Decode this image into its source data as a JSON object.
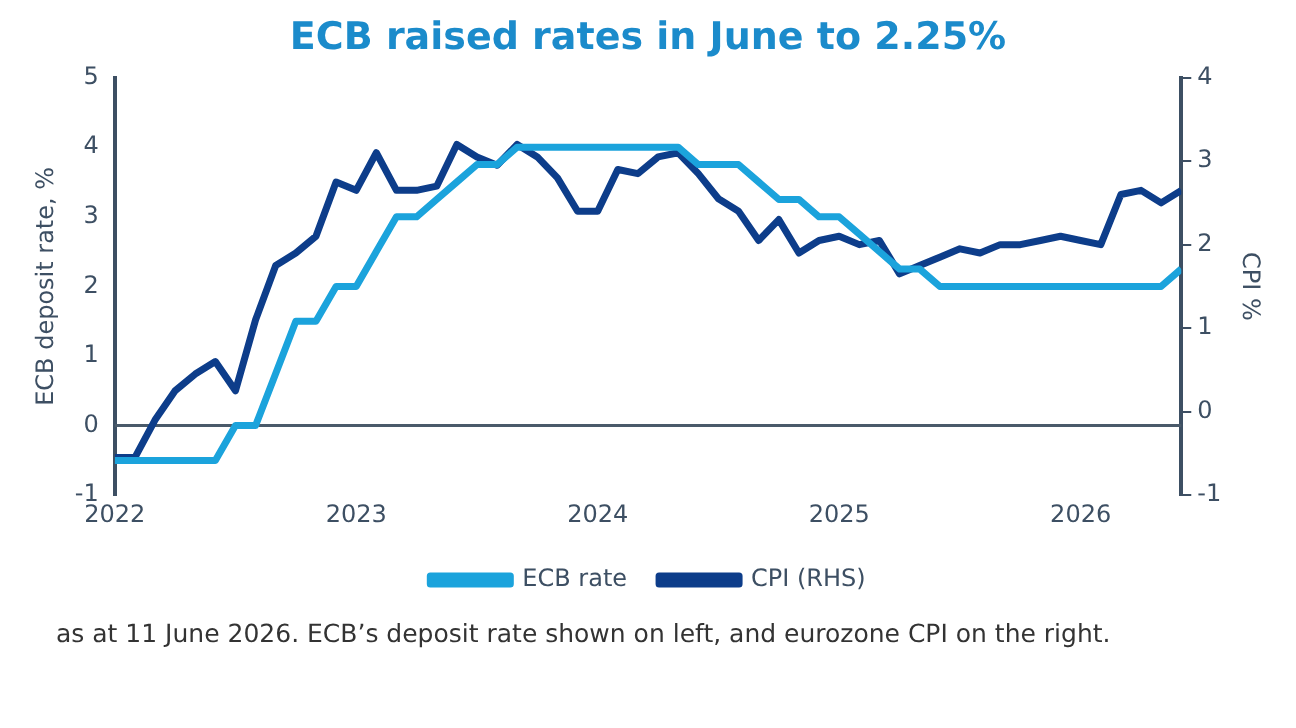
{
  "chart_data": {
    "type": "line",
    "title": "ECB raised rates in June to 2.25%",
    "ylabel": "ECB deposit rate, %",
    "y2label": "CPI %",
    "x": [
      "2022-01",
      "2022-02",
      "2022-03",
      "2022-04",
      "2022-05",
      "2022-06",
      "2022-07",
      "2022-08",
      "2022-09",
      "2022-10",
      "2022-11",
      "2022-12",
      "2023-01",
      "2023-02",
      "2023-03",
      "2023-04",
      "2023-05",
      "2023-06",
      "2023-07",
      "2023-08",
      "2023-09",
      "2023-10",
      "2023-11",
      "2023-12",
      "2024-01",
      "2024-02",
      "2024-03",
      "2024-04",
      "2024-05",
      "2024-06",
      "2024-07",
      "2024-08",
      "2024-09",
      "2024-10",
      "2024-11",
      "2024-12",
      "2025-01",
      "2025-02",
      "2025-03",
      "2025-04",
      "2025-05",
      "2025-06",
      "2025-07",
      "2025-08",
      "2025-09",
      "2025-10",
      "2025-11",
      "2025-12",
      "2026-01",
      "2026-02",
      "2026-03",
      "2026-04",
      "2026-05",
      "2026-06"
    ],
    "series": [
      {
        "name": "ECB rate",
        "color": "#1ba3dc",
        "values": [
          -0.5,
          -0.5,
          -0.5,
          -0.5,
          -0.5,
          -0.5,
          0,
          0,
          0.75,
          1.5,
          1.5,
          2,
          2,
          2.5,
          3,
          3,
          3.25,
          3.5,
          3.75,
          3.75,
          4,
          4,
          4,
          4,
          4,
          4,
          4,
          4,
          4,
          3.75,
          3.75,
          3.75,
          3.5,
          3.25,
          3.25,
          3,
          3,
          2.75,
          2.5,
          2.25,
          2.25,
          2,
          2,
          2,
          2,
          2,
          2,
          2,
          2,
          2,
          2,
          2,
          2,
          2.25
        ]
      },
      {
        "name": "CPI (RHS)",
        "color": "#0d3d8a",
        "axis": "y2",
        "values": [
          -0.55,
          -0.55,
          -0.1,
          0.25,
          0.45,
          0.6,
          0.25,
          1.1,
          1.75,
          1.9,
          2.1,
          2.75,
          2.65,
          3.1,
          2.65,
          2.65,
          2.7,
          3.2,
          3.05,
          2.95,
          3.2,
          3.05,
          2.8,
          2.4,
          2.4,
          2.9,
          2.85,
          3.05,
          3.1,
          2.85,
          2.55,
          2.4,
          2.05,
          2.3,
          1.9,
          2.05,
          2.1,
          2,
          2.05,
          1.65,
          1.75,
          1.85,
          1.95,
          1.9,
          2,
          2,
          2.05,
          2.1,
          2.05,
          2,
          2.6,
          2.65,
          2.5,
          2.65
        ]
      }
    ],
    "xlim": [
      "2022-01",
      "2026-06"
    ],
    "xticks": [
      "2022",
      "2023",
      "2024",
      "2025",
      "2026"
    ],
    "ylim": [
      -1,
      5
    ],
    "yticks": [
      -1,
      0,
      1,
      2,
      3,
      4,
      5
    ],
    "y2lim": [
      -1,
      4
    ],
    "y2ticks": [
      -1,
      0,
      1,
      2,
      3,
      4
    ],
    "ref_lines": [
      {
        "axis": "y",
        "value": 0,
        "color": "#4a5a6a"
      }
    ],
    "legend": "bottom",
    "grid": false,
    "marker": "none",
    "line_style": "solid",
    "annotations": [
      "as at 11 June 2026. ECB’s deposit rate shown on left, and eurozone CPI on the right."
    ]
  }
}
